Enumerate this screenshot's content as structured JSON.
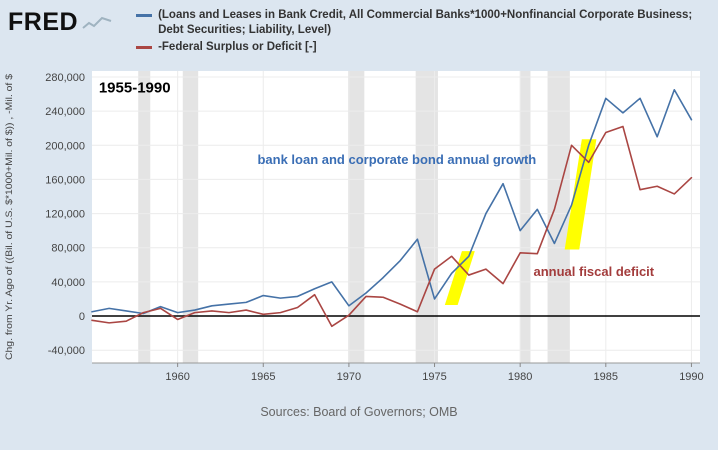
{
  "header": {
    "logo": "FRED",
    "legend": [
      {
        "label": "(Loans and Leases in Bank Credit, All Commercial Banks*1000+Nonfinancial Corporate Business; Debt Securities; Liability, Level)",
        "color": "#4572a7"
      },
      {
        "label": "-Federal Surplus or Deficit [-]",
        "color": "#aa4643"
      }
    ]
  },
  "footer": {
    "source": "Sources: Board of Governors; OMB"
  },
  "chart_data": {
    "type": "line",
    "title": "1955-1990",
    "ylabel": "Chg. from Yr. Ago of ((Bil. of U.S. $*1000+Mil. of $)) , -Mil. of $",
    "xlim": [
      1955,
      1990.5
    ],
    "ylim": [
      -55000,
      287000
    ],
    "yticks": [
      -40000,
      0,
      40000,
      80000,
      120000,
      160000,
      200000,
      240000,
      280000
    ],
    "ytick_labels": [
      "-40,000",
      "0",
      "40,000",
      "80,000",
      "120,000",
      "160,000",
      "200,000",
      "240,000",
      "280,000"
    ],
    "xticks": [
      1960,
      1965,
      1970,
      1975,
      1980,
      1985,
      1990
    ],
    "xtick_labels": [
      "1960",
      "1965",
      "1970",
      "1975",
      "1980",
      "1985",
      "1990"
    ],
    "grid": true,
    "legend_position": "top",
    "x": [
      1955,
      1956,
      1957,
      1958,
      1959,
      1960,
      1961,
      1962,
      1963,
      1964,
      1965,
      1966,
      1967,
      1968,
      1969,
      1970,
      1971,
      1972,
      1973,
      1974,
      1975,
      1976,
      1977,
      1978,
      1979,
      1980,
      1981,
      1982,
      1983,
      1984,
      1985,
      1986,
      1987,
      1988,
      1989,
      1990
    ],
    "series": [
      {
        "name": "(Loans and Leases in Bank Credit, All Commercial Banks*1000+Nonfinancial Corporate Business; Debt Securities; Liability, Level)",
        "color": "#4572a7",
        "values": [
          5000,
          9000,
          6000,
          3000,
          11000,
          4000,
          7000,
          12000,
          14000,
          16000,
          24000,
          21000,
          23000,
          32000,
          40000,
          12000,
          27000,
          45000,
          65000,
          90000,
          20000,
          50000,
          70000,
          120000,
          155000,
          100000,
          125000,
          85000,
          130000,
          200000,
          255000,
          238000,
          255000,
          210000,
          265000,
          230000
        ]
      },
      {
        "name": "-Federal Surplus or Deficit [-]",
        "color": "#aa4643",
        "values": [
          -5000,
          -8000,
          -6000,
          4000,
          9000,
          -4000,
          4000,
          6000,
          4000,
          7000,
          2000,
          4000,
          10000,
          25000,
          -12000,
          1000,
          23000,
          22000,
          14000,
          5000,
          55000,
          70000,
          48000,
          55000,
          38000,
          74000,
          73000,
          125000,
          200000,
          180000,
          215000,
          222000,
          148000,
          152000,
          143000,
          162000
        ]
      }
    ],
    "recessions": [
      [
        1957.7,
        1958.4
      ],
      [
        1960.3,
        1961.2
      ],
      [
        1969.95,
        1970.9
      ],
      [
        1973.9,
        1975.2
      ],
      [
        1980.0,
        1980.6
      ],
      [
        1981.6,
        1982.9
      ]
    ],
    "highlights": [
      {
        "points": [
          [
            1975.6,
            13000
          ],
          [
            1976.35,
            13000
          ],
          [
            1977.35,
            76000
          ],
          [
            1976.6,
            76000
          ]
        ]
      },
      {
        "points": [
          [
            1982.6,
            78000
          ],
          [
            1983.45,
            78000
          ],
          [
            1984.45,
            207000
          ],
          [
            1983.6,
            207000
          ]
        ]
      }
    ],
    "annotations": [
      {
        "text": "1955-1990",
        "x": 1955.4,
        "y": 262000,
        "color": "#000000",
        "size": 15,
        "anchor": "start"
      },
      {
        "text": "bank loan and corporate bond annual growth",
        "x": 1972.8,
        "y": 178000,
        "color": "#3a6eb5",
        "size": 13,
        "anchor": "middle"
      },
      {
        "text": "annual fiscal deficit",
        "x": 1984.3,
        "y": 47000,
        "color": "#a33c3c",
        "size": 13,
        "anchor": "middle"
      }
    ],
    "colors": {
      "plot_bg": "#ffffff",
      "recession": "#e4e4e4",
      "grid": "#ececec",
      "highlight": "#ffff00",
      "zero_line": "#000000",
      "axis": "#999999",
      "tick_text": "#444444"
    }
  }
}
